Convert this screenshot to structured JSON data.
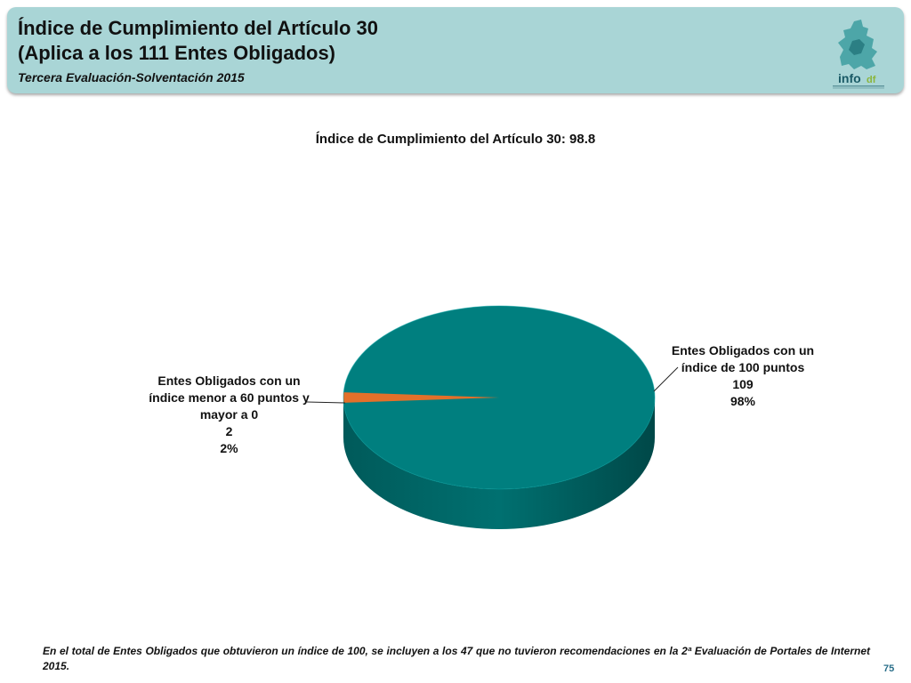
{
  "header": {
    "title_line1": "Índice de Cumplimiento del Artículo 30",
    "title_line2": "(Aplica a los 111 Entes Obligados)",
    "subtitle": "Tercera Evaluación-Solventación 2015",
    "logo_text": "infodf"
  },
  "colors": {
    "header_bg": "#a9d5d6",
    "teal": "#007f7f",
    "orange": "#e3702a",
    "page_number": "#2a6f8a"
  },
  "chart_data": {
    "type": "pie",
    "title": "Índice de Cumplimiento del Artículo 30: 98.8",
    "slices": [
      {
        "label_lines": [
          "Entes Obligados con un",
          "índice de 100 puntos"
        ],
        "value": 109,
        "percent": "98%",
        "color": "#007f7f"
      },
      {
        "label_lines": [
          "Entes Obligados con un",
          "índice menor a 60 puntos y",
          "mayor a 0"
        ],
        "value": 2,
        "percent": "2%",
        "color": "#e3702a"
      }
    ]
  },
  "footnote": "En el total de Entes Obligados que obtuvieron un índice de 100, se incluyen a los 47 que no tuvieron recomendaciones en la 2ª Evaluación de Portales de Internet 2015.",
  "page_number": "75"
}
